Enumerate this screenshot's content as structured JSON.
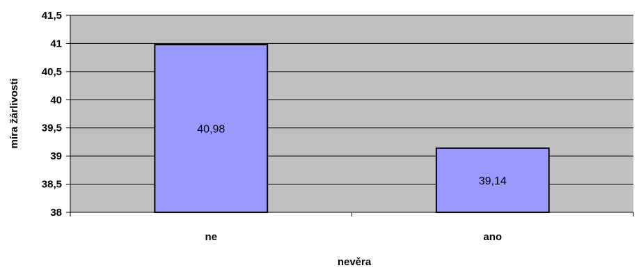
{
  "chart_data": {
    "type": "bar",
    "categories": [
      "ne",
      "ano"
    ],
    "values": [
      40.98,
      39.14
    ],
    "data_labels": [
      "40,98",
      "39,14"
    ],
    "title": "",
    "xlabel": "nevěra",
    "ylabel": "míra žárlivosti",
    "ylim": [
      38,
      41.5
    ],
    "y_tick_values": [
      38,
      38.5,
      39,
      39.5,
      40,
      40.5,
      41,
      41.5
    ],
    "y_tick_labels": [
      "38",
      "38,5",
      "39",
      "39,5",
      "40",
      "40,5",
      "41",
      "41,5"
    ],
    "grid": true,
    "legend": "none",
    "colors": {
      "plot_background": "#c0c0c0",
      "bar_fill": "#9999ff",
      "bar_stroke": "#000000",
      "gridline": "#000000"
    }
  }
}
